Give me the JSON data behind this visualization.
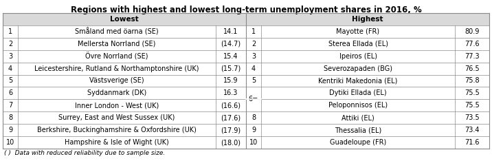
{
  "title": "Regions with highest and lowest long-term unemployment shares in 2016, %",
  "lowest_header": "Lowest",
  "highest_header": "Highest",
  "lowest_rows": [
    {
      "rank": "1",
      "region": "Småland med öarna (SE)",
      "value": "14.1"
    },
    {
      "rank": "2",
      "region": "Mellersta Norrland (SE)",
      "value": "(14.7)"
    },
    {
      "rank": "3",
      "region": "Övre Norrland (SE)",
      "value": "15.4"
    },
    {
      "rank": "4",
      "region": "Leicestershire, Rutland & Northamptonshire (UK)",
      "value": "(15.7)"
    },
    {
      "rank": "5",
      "region": "Västsverige (SE)",
      "value": "15.9"
    },
    {
      "rank": "6",
      "region": "Syddanmark (DK)",
      "value": "16.3"
    },
    {
      "rank": "7",
      "region": "Inner London - West (UK)",
      "value": "(16.6)"
    },
    {
      "rank": "8",
      "region": "Surrey, East and West Sussex (UK)",
      "value": "(17.6)"
    },
    {
      "rank": "9",
      "region": "Berkshire, Buckinghamshire & Oxfordshire (UK)",
      "value": "(17.9)"
    },
    {
      "rank": "10",
      "region": "Hampshire & Isle of Wight (UK)",
      "value": "(18.0)"
    }
  ],
  "highest_rows": [
    {
      "rank": "1",
      "region": "Mayotte (FR)",
      "value": "80.9"
    },
    {
      "rank": "2",
      "region": "Sterea Ellada (EL)",
      "value": "77.6"
    },
    {
      "rank": "3",
      "region": "Ipeiros (EL)",
      "value": "77.3"
    },
    {
      "rank": "4",
      "region": "Severozapaden (BG)",
      "value": "76.5"
    },
    {
      "rank": "5",
      "region": "Kentriki Makedonia (EL)",
      "value": "75.8"
    },
    {
      "rank": "6=",
      "region": "Dytiki Ellada (EL)",
      "value": "75.5"
    },
    {
      "rank": "6=",
      "region": "Peloponnisos (EL)",
      "value": "75.5"
    },
    {
      "rank": "8",
      "region": "Attiki (EL)",
      "value": "73.5"
    },
    {
      "rank": "9",
      "region": "Thessalia (EL)",
      "value": "73.4"
    },
    {
      "rank": "10",
      "region": "Guadeloupe (FR)",
      "value": "71.6"
    }
  ],
  "footnote": "( )  Data with reduced reliability due to sample size.",
  "bg_header": "#d9d9d9",
  "bg_white": "#ffffff",
  "border_color": "#888888",
  "title_fontsize": 8.5,
  "cell_fontsize": 7.0,
  "header_fontsize": 7.5,
  "footnote_fontsize": 6.5
}
